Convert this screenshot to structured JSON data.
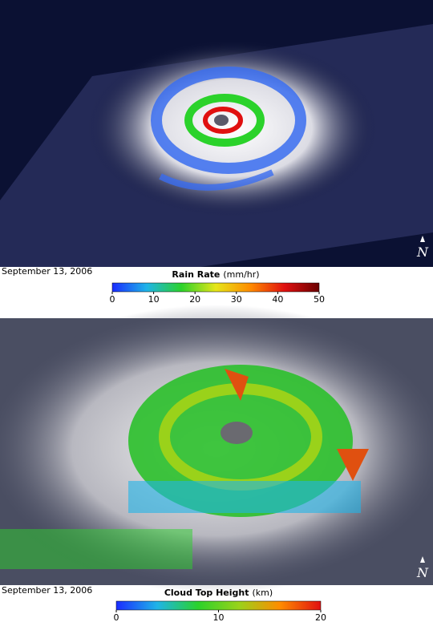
{
  "panels": [
    {
      "date": "September 13, 2006",
      "north": "N",
      "colorbar": {
        "title": "Rain Rate",
        "unit": "(mm/hr)",
        "ticks": [
          0,
          10,
          20,
          30,
          40,
          50
        ],
        "colors": [
          "#1a2cff",
          "#1fb4e8",
          "#2bd22b",
          "#e6e619",
          "#ff8c00",
          "#e01010",
          "#6a0000"
        ]
      }
    },
    {
      "date": "September 13, 2006",
      "north": "N",
      "colorbar": {
        "title": "Cloud Top Height",
        "unit": "(km)",
        "ticks": [
          0,
          10,
          20
        ],
        "colors": [
          "#1a2cff",
          "#1fb4e8",
          "#2bd22b",
          "#9ad21a",
          "#ff8c00",
          "#e01010"
        ]
      }
    }
  ]
}
